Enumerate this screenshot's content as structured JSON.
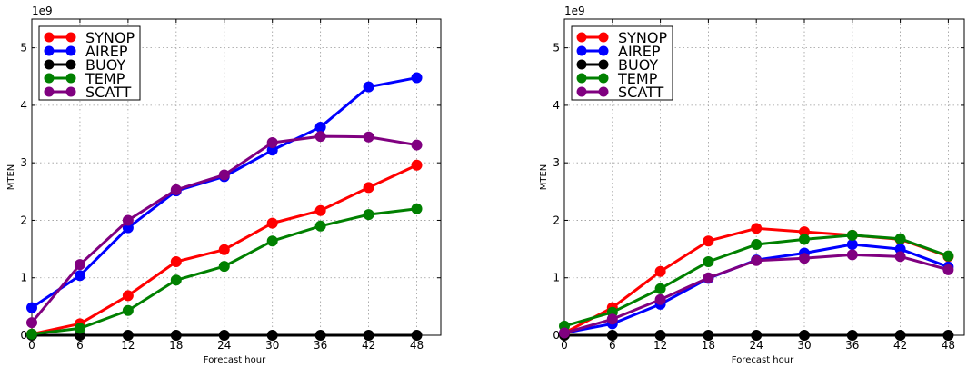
{
  "chart_data": [
    {
      "type": "line",
      "xlabel": "Forecast hour",
      "ylabel": "MTEN",
      "y_multiplier": "1e9",
      "x_ticks": [
        0,
        6,
        12,
        18,
        24,
        30,
        36,
        42,
        48
      ],
      "y_ticks": [
        0,
        1,
        2,
        3,
        4,
        5
      ],
      "xlim": [
        0,
        51
      ],
      "ylim": [
        0,
        5.5
      ],
      "grid": true,
      "legend_position": "top-left",
      "x": [
        0,
        6,
        12,
        18,
        24,
        30,
        36,
        42,
        48
      ],
      "series": [
        {
          "name": "SYNOP",
          "color": "#ff0000",
          "values": [
            0.02,
            0.2,
            0.69,
            1.28,
            1.49,
            1.95,
            2.17,
            2.57,
            2.96
          ]
        },
        {
          "name": "AIREP",
          "color": "#0000ff",
          "values": [
            0.48,
            1.04,
            1.87,
            2.51,
            2.76,
            3.22,
            3.62,
            4.32,
            4.48
          ]
        },
        {
          "name": "BUOY",
          "color": "#000000",
          "values": [
            0,
            0,
            0,
            0,
            0,
            0,
            0,
            0,
            0
          ]
        },
        {
          "name": "TEMP",
          "color": "#008000",
          "values": [
            0.02,
            0.12,
            0.43,
            0.96,
            1.2,
            1.64,
            1.9,
            2.1,
            2.2
          ]
        },
        {
          "name": "SCATT",
          "color": "#800080",
          "values": [
            0.22,
            1.23,
            2.0,
            2.53,
            2.79,
            3.35,
            3.46,
            3.45,
            3.31
          ]
        }
      ]
    },
    {
      "type": "line",
      "xlabel": "Forecast hour",
      "ylabel": "MTEN",
      "y_multiplier": "1e9",
      "x_ticks": [
        0,
        6,
        12,
        18,
        24,
        30,
        36,
        42,
        48
      ],
      "y_ticks": [
        0,
        1,
        2,
        3,
        4,
        5
      ],
      "xlim": [
        0,
        50
      ],
      "ylim": [
        0,
        5.5
      ],
      "grid": true,
      "legend_position": "top-left",
      "x": [
        0,
        6,
        12,
        18,
        24,
        30,
        36,
        42,
        48
      ],
      "series": [
        {
          "name": "SYNOP",
          "color": "#ff0000",
          "values": [
            0.04,
            0.48,
            1.11,
            1.64,
            1.86,
            1.8,
            1.74,
            1.67,
            1.37
          ]
        },
        {
          "name": "AIREP",
          "color": "#0000ff",
          "values": [
            0.04,
            0.2,
            0.54,
            0.99,
            1.31,
            1.43,
            1.58,
            1.5,
            1.19
          ]
        },
        {
          "name": "BUOY",
          "color": "#000000",
          "values": [
            0,
            0,
            0,
            0,
            0,
            0,
            0,
            0,
            0
          ]
        },
        {
          "name": "TEMP",
          "color": "#008000",
          "values": [
            0.16,
            0.4,
            0.81,
            1.28,
            1.58,
            1.67,
            1.74,
            1.68,
            1.38
          ]
        },
        {
          "name": "SCATT",
          "color": "#800080",
          "values": [
            0.04,
            0.28,
            0.62,
            1.0,
            1.3,
            1.34,
            1.4,
            1.37,
            1.14
          ]
        }
      ]
    }
  ]
}
